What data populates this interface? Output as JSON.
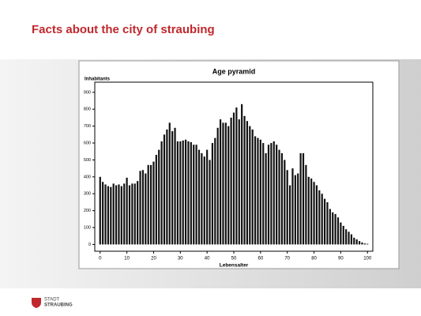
{
  "slide_title": "Facts about the city of straubing",
  "logo": {
    "line1": "STADT",
    "line2": "STRAUBING"
  },
  "chart_data": {
    "type": "bar",
    "title": "Age pyramid",
    "ylabel": "Inhabitants",
    "xlabel": "Lebensalter",
    "color": "#111111",
    "x": [
      0,
      1,
      2,
      3,
      4,
      5,
      6,
      7,
      8,
      9,
      10,
      11,
      12,
      13,
      14,
      15,
      16,
      17,
      18,
      19,
      20,
      21,
      22,
      23,
      24,
      25,
      26,
      27,
      28,
      29,
      30,
      31,
      32,
      33,
      34,
      35,
      36,
      37,
      38,
      39,
      40,
      41,
      42,
      43,
      44,
      45,
      46,
      47,
      48,
      49,
      50,
      51,
      52,
      53,
      54,
      55,
      56,
      57,
      58,
      59,
      60,
      61,
      62,
      63,
      64,
      65,
      66,
      67,
      68,
      69,
      70,
      71,
      72,
      73,
      74,
      75,
      76,
      77,
      78,
      79,
      80,
      81,
      82,
      83,
      84,
      85,
      86,
      87,
      88,
      89,
      90,
      91,
      92,
      93,
      94,
      95,
      96,
      97,
      98,
      99,
      100
    ],
    "values": [
      400,
      370,
      355,
      345,
      340,
      360,
      350,
      355,
      345,
      360,
      395,
      350,
      360,
      360,
      375,
      435,
      440,
      420,
      470,
      470,
      490,
      530,
      560,
      610,
      650,
      680,
      720,
      670,
      690,
      610,
      610,
      615,
      620,
      610,
      605,
      590,
      590,
      560,
      540,
      520,
      560,
      500,
      600,
      630,
      690,
      740,
      720,
      720,
      700,
      750,
      780,
      810,
      740,
      830,
      760,
      730,
      700,
      680,
      640,
      630,
      620,
      600,
      540,
      590,
      600,
      610,
      590,
      560,
      540,
      500,
      440,
      350,
      450,
      410,
      420,
      540,
      540,
      470,
      400,
      390,
      370,
      350,
      320,
      300,
      270,
      250,
      210,
      190,
      180,
      160,
      130,
      110,
      90,
      75,
      60,
      40,
      30,
      20,
      12,
      6,
      4
    ],
    "xlim": [
      -2,
      102
    ],
    "xticks": [
      0,
      10,
      20,
      30,
      40,
      50,
      60,
      70,
      80,
      90,
      100
    ],
    "ylim": [
      -40,
      960
    ],
    "yticks": [
      0,
      100,
      200,
      300,
      400,
      500,
      600,
      700,
      800,
      900
    ]
  }
}
